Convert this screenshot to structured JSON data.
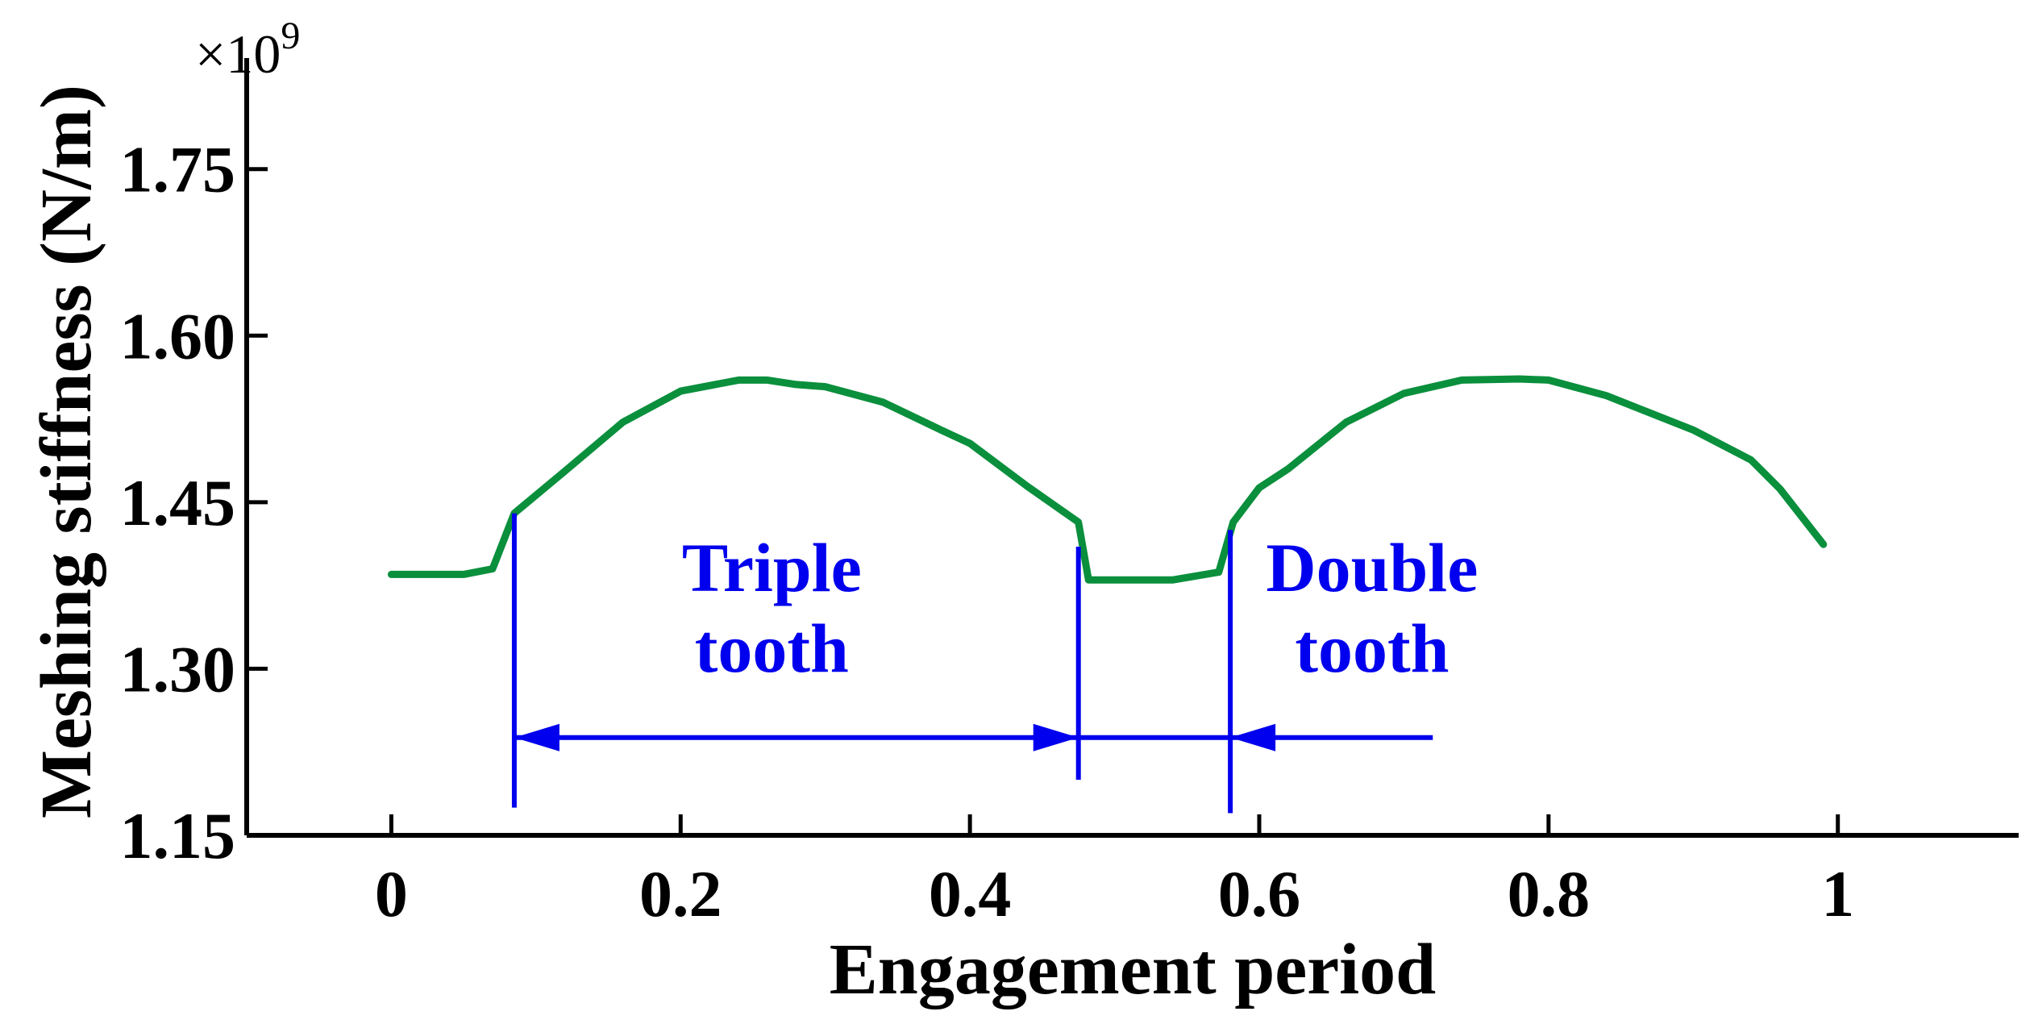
{
  "chart_data": {
    "type": "line",
    "title": "",
    "xlabel": "Engagement period",
    "ylabel": "Meshing stiffness (N/m)",
    "y_multiplier": "×10",
    "y_multiplier_exp": "9",
    "xlim": [
      -0.1,
      1.125
    ],
    "ylim": [
      1.15,
      1.85
    ],
    "x_ticks": [
      0,
      0.2,
      0.4,
      0.6,
      0.8,
      1
    ],
    "x_tick_labels": [
      "0",
      "0.2",
      "0.4",
      "0.6",
      "0.8",
      "1"
    ],
    "y_ticks": [
      1.15,
      1.3,
      1.45,
      1.6,
      1.75
    ],
    "y_tick_labels": [
      "1.15",
      "1.30",
      "1.45",
      "1.60",
      "1.75"
    ],
    "grid": false,
    "colors": {
      "series": "#0a8f3c",
      "annotation": "#0000ee",
      "axis": "#000000"
    },
    "series": [
      {
        "x": [
          0,
          0.05,
          0.07,
          0.085,
          0.12,
          0.16,
          0.2,
          0.24,
          0.26,
          0.28,
          0.3,
          0.34,
          0.38,
          0.4,
          0.44,
          0.475,
          0.482,
          0.54,
          0.572,
          0.582,
          0.6,
          0.62,
          0.66,
          0.7,
          0.74,
          0.78,
          0.8,
          0.84,
          0.9,
          0.94,
          0.96,
          0.99
        ],
        "y": [
          1.385,
          1.385,
          1.39,
          1.44,
          1.478,
          1.522,
          1.55,
          1.56,
          1.56,
          1.556,
          1.554,
          1.54,
          1.515,
          1.503,
          1.464,
          1.432,
          1.38,
          1.38,
          1.387,
          1.432,
          1.463,
          1.48,
          1.522,
          1.548,
          1.56,
          1.561,
          1.56,
          1.546,
          1.515,
          1.488,
          1.462,
          1.412
        ]
      }
    ],
    "annotations": {
      "vlines": [
        {
          "x": 0.085,
          "y_from": 1.175,
          "y_to": 1.44
        },
        {
          "x": 0.475,
          "y_from": 1.2,
          "y_to": 1.41
        },
        {
          "x": 0.58,
          "y_from": 1.17,
          "y_to": 1.425
        }
      ],
      "arrows": [
        {
          "x_from": 0.085,
          "x_to": 0.475,
          "y": 1.238,
          "heads": "both"
        },
        {
          "x_from": 0.475,
          "x_to": 0.58,
          "y": 1.238,
          "heads": "none"
        },
        {
          "x_from": 0.58,
          "x_to": 0.72,
          "y": 1.238,
          "heads": "start"
        }
      ],
      "labels": [
        {
          "lines": [
            "Triple",
            "tooth"
          ],
          "x": 0.263,
          "y": 1.37
        },
        {
          "lines": [
            "Double",
            "tooth"
          ],
          "x": 0.678,
          "y": 1.37
        }
      ]
    }
  }
}
